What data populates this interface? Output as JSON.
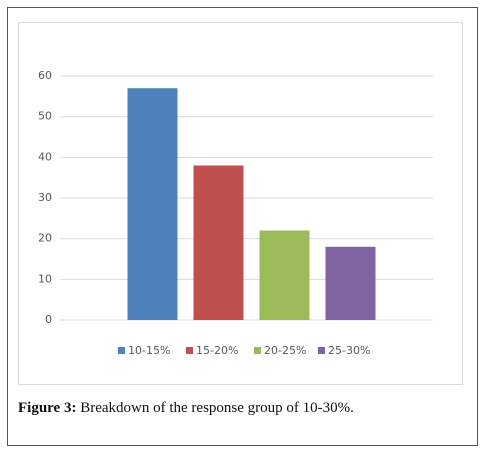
{
  "chart_data": {
    "type": "bar",
    "categories": [
      null
    ],
    "series": [
      {
        "name": "10-15%",
        "color": "#4f81bd",
        "values": [
          57
        ]
      },
      {
        "name": "15-20%",
        "color": "#c0504d",
        "values": [
          38
        ]
      },
      {
        "name": "20-25%",
        "color": "#9bbb59",
        "values": [
          22
        ]
      },
      {
        "name": "25-30%",
        "color": "#8064a2",
        "values": [
          18
        ]
      }
    ],
    "ylim": [
      0,
      60
    ],
    "yticks": [
      0,
      10,
      20,
      30,
      40,
      50,
      60
    ],
    "grid": true,
    "legend": "bottom",
    "caption_label": "Figure 3:",
    "caption": "Breakdown of the response group of 10-30%."
  }
}
